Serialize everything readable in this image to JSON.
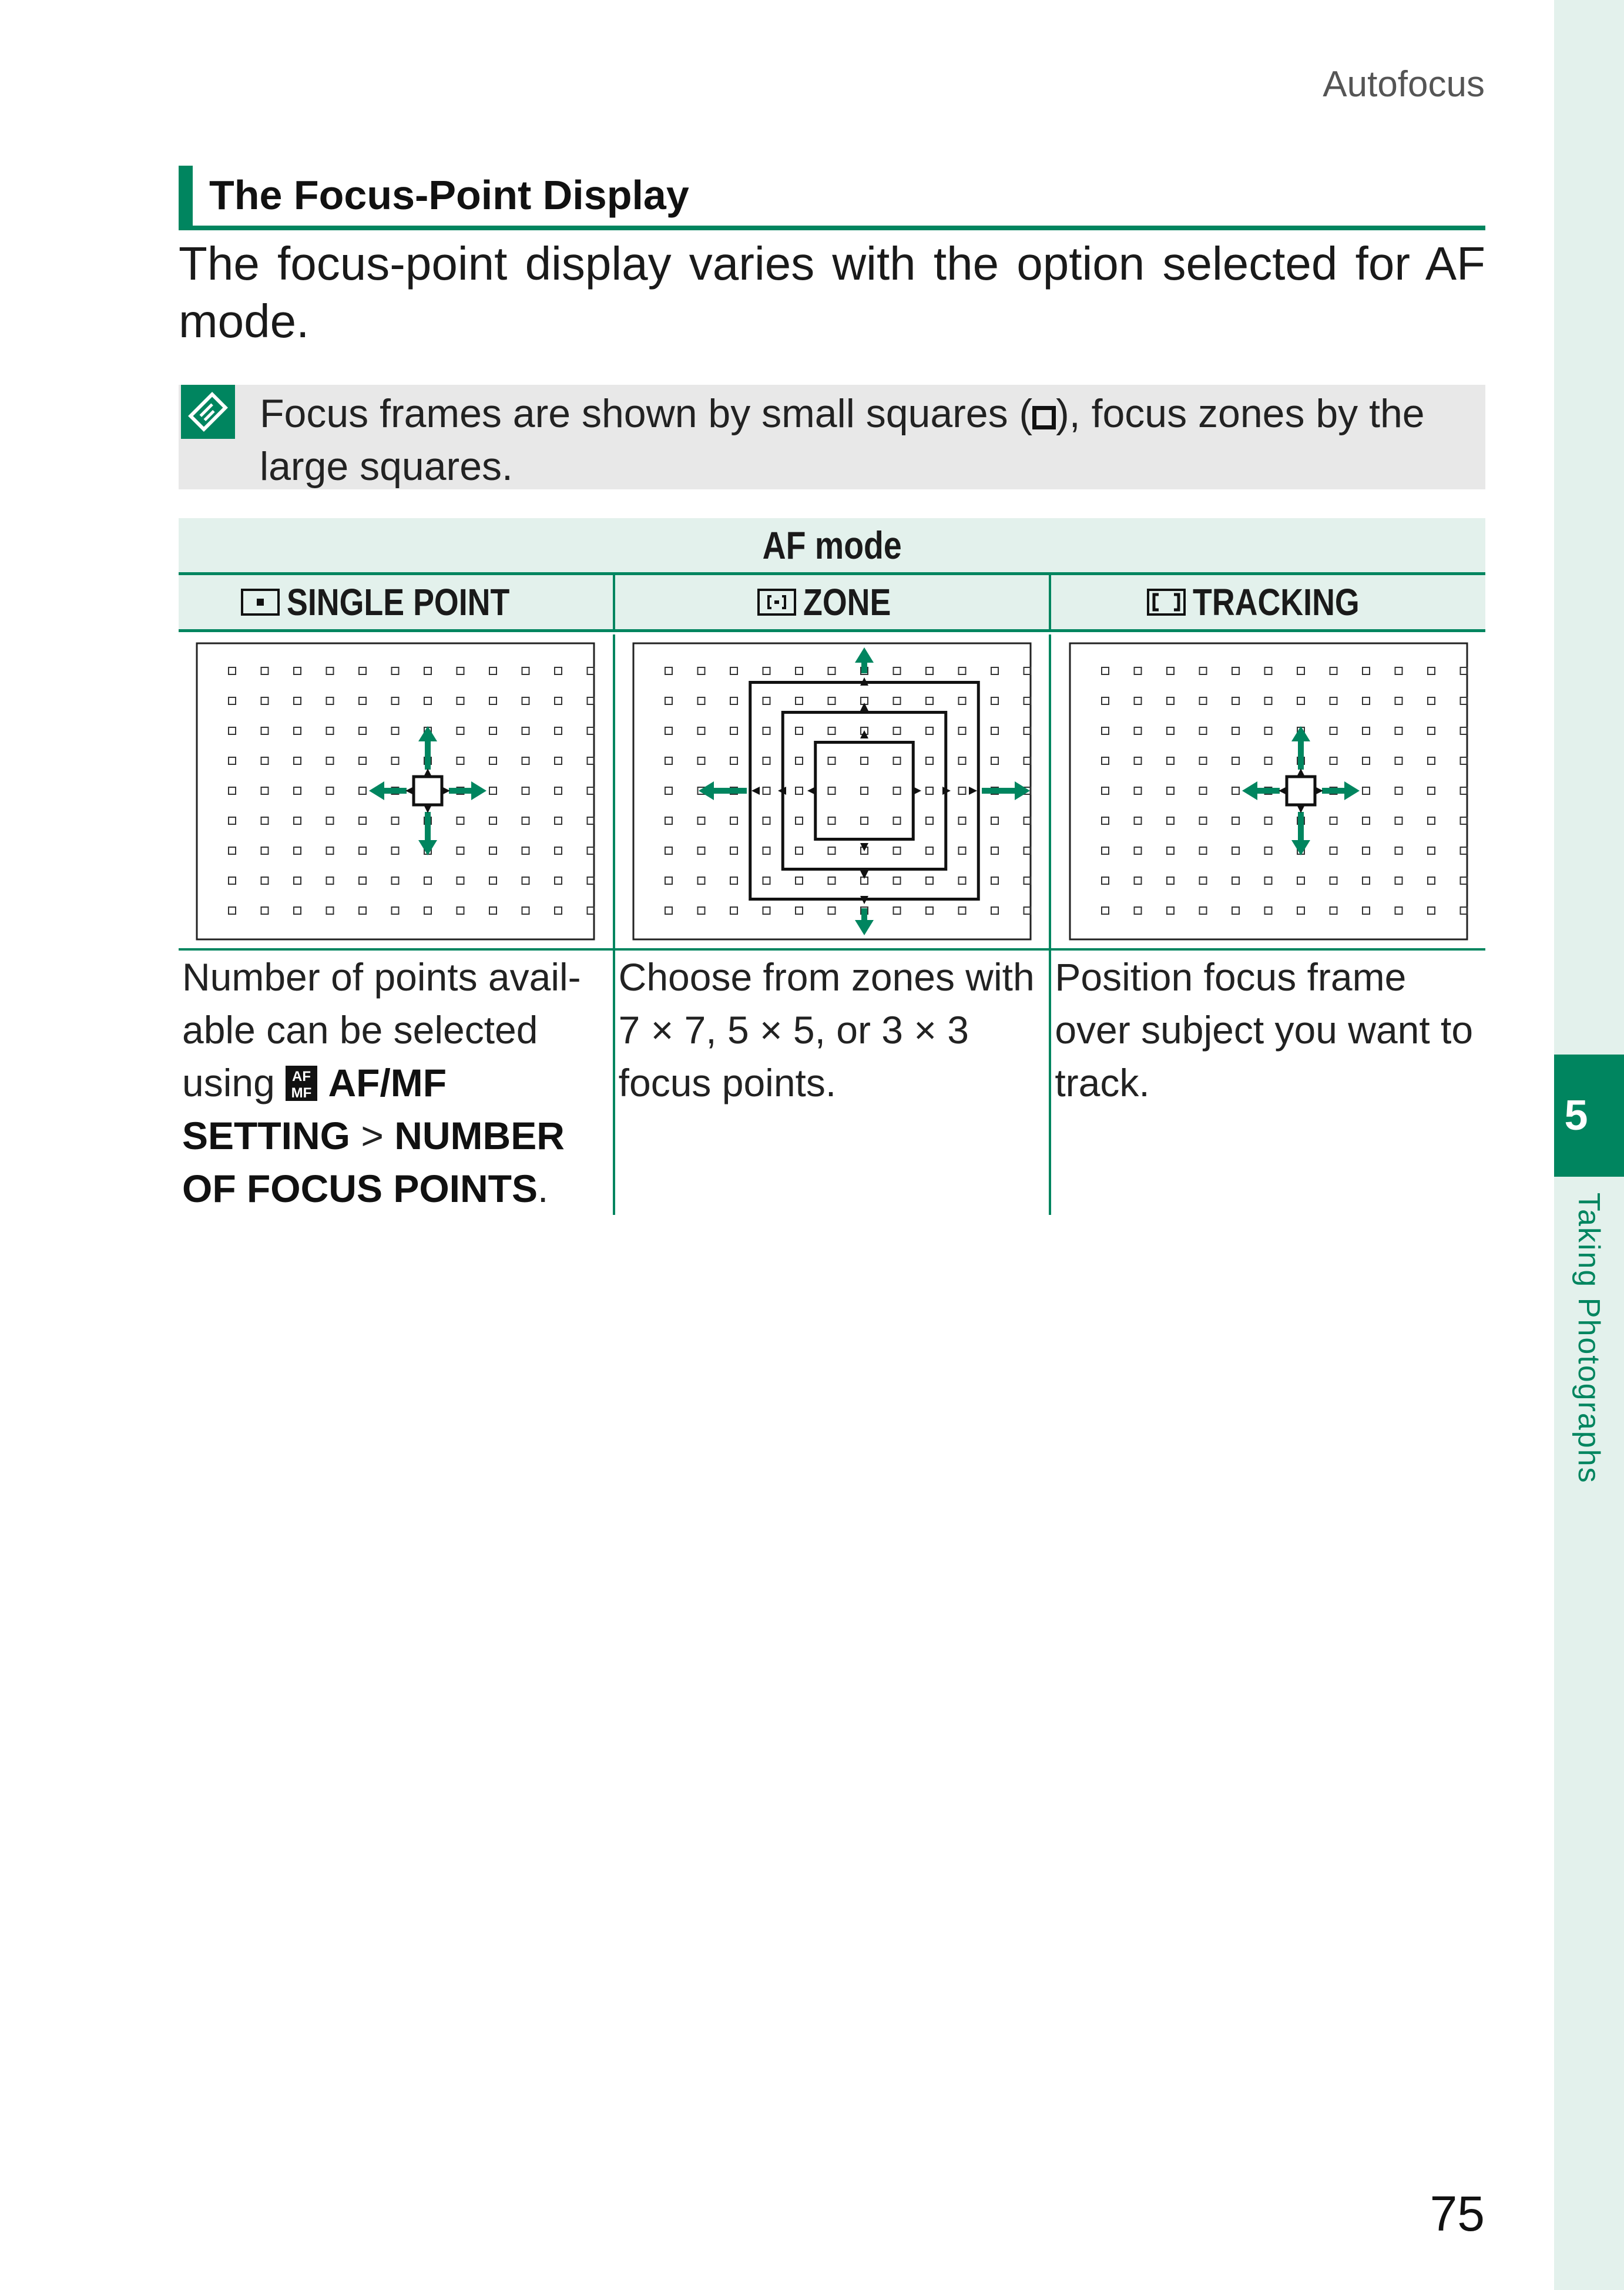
{
  "running_head": "Autofocus",
  "page_number": "75",
  "side_tab": {
    "chapter_number": "5",
    "chapter_title": "Taking Photographs"
  },
  "section": {
    "heading": "The Focus-Point Display",
    "intro": "The focus-point display varies with the option selected for AF mode."
  },
  "note": {
    "icon": "note-icon",
    "text_before": "Focus frames are shown by small squares (",
    "text_after": "), focus zones by the large squares."
  },
  "table": {
    "header": "AF mode",
    "columns": [
      {
        "icon": "single-point-icon",
        "label": "SINGLE POINT",
        "description_parts": {
          "text1": "Number of points avail-able can be selected using ",
          "menu_icon": "af-mf-menu-icon",
          "bold1": "AF/MF SETTING",
          "sep": " > ",
          "bold2": "NUMBER OF FOCUS POINTS",
          "end": "."
        }
      },
      {
        "icon": "zone-icon",
        "label": "ZONE",
        "description": "Choose from zones with 7 × 7, 5 × 5, or 3 × 3 focus points."
      },
      {
        "icon": "tracking-icon",
        "label": "TRACKING",
        "description": "Position focus frame over subject you want to track."
      }
    ]
  },
  "colors": {
    "accent": "#00855f",
    "tint": "#e3f1ec",
    "note_bg": "#e8e8e8"
  }
}
